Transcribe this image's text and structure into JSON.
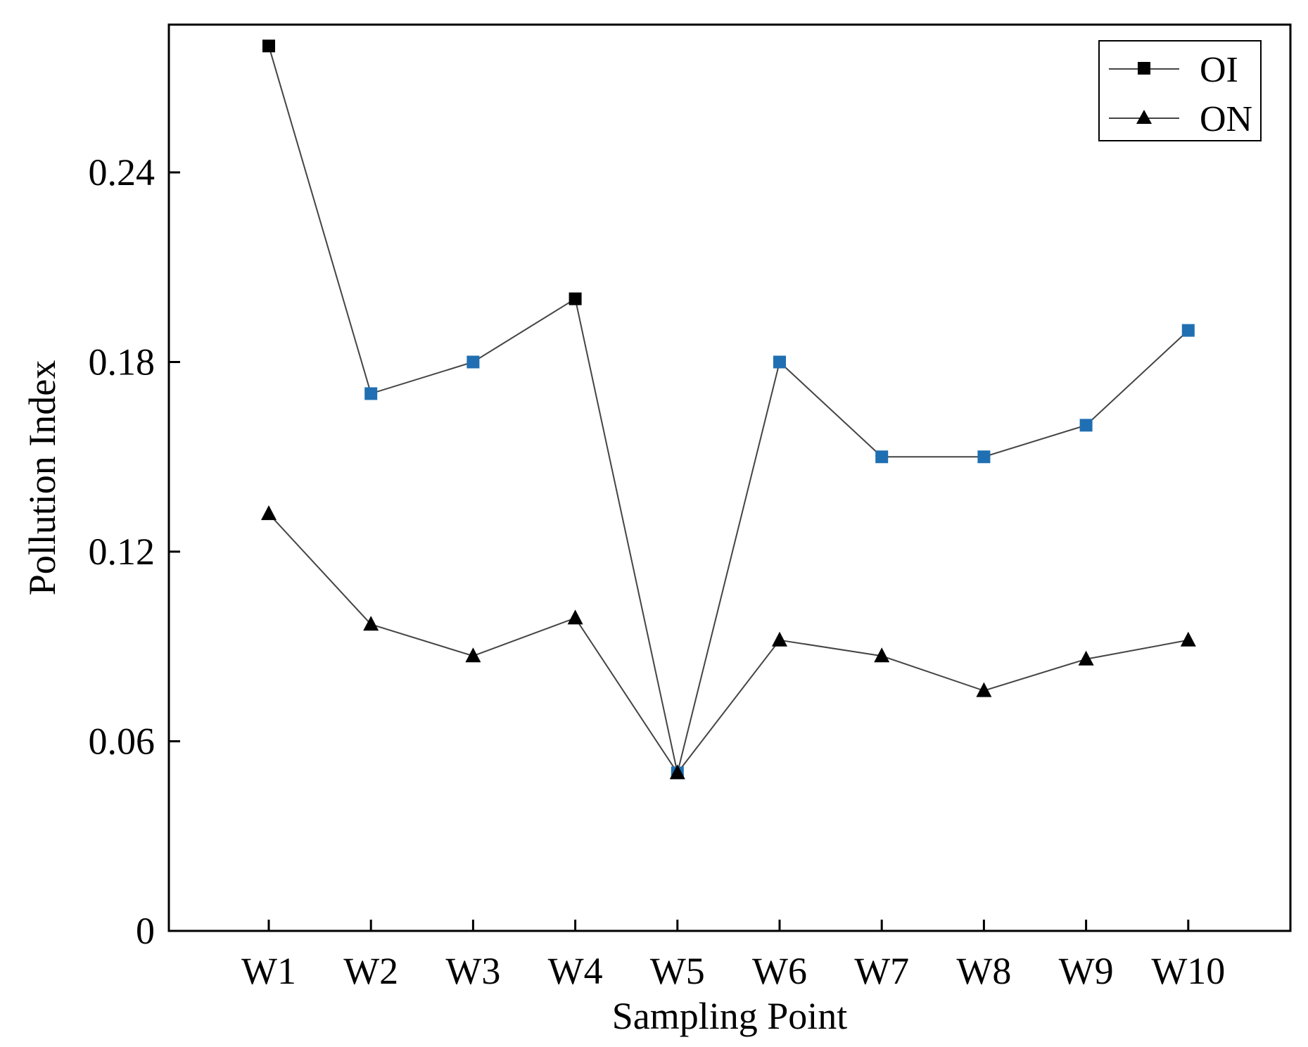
{
  "chart_data": {
    "type": "line",
    "title": "",
    "xlabel": "Sampling Point",
    "ylabel": "Pollution Index",
    "categories": [
      "W1",
      "W2",
      "W3",
      "W4",
      "W5",
      "W6",
      "W7",
      "W8",
      "W9",
      "W10"
    ],
    "ylim": [
      0,
      0.28
    ],
    "yticks": [
      0,
      0.06,
      0.12,
      0.18,
      0.24
    ],
    "ytick_labels": [
      "0",
      "0.06",
      "0.12",
      "0.18",
      "0.24"
    ],
    "grid": false,
    "legend_position": "top-right",
    "series": [
      {
        "name": "OI",
        "marker": "square",
        "values": [
          0.28,
          0.17,
          0.18,
          0.2,
          0.05,
          0.18,
          0.15,
          0.15,
          0.16,
          0.19
        ],
        "marker_colors": [
          "#000000",
          "#1f6fb2",
          "#1f6fb2",
          "#000000",
          "#1f6fb2",
          "#1f6fb2",
          "#1f6fb2",
          "#1f6fb2",
          "#1f6fb2",
          "#1f6fb2"
        ]
      },
      {
        "name": "ON",
        "marker": "triangle",
        "values": [
          0.132,
          0.097,
          0.087,
          0.099,
          0.05,
          0.092,
          0.087,
          0.076,
          0.086,
          0.092
        ],
        "marker_colors": [
          "#000000",
          "#000000",
          "#000000",
          "#000000",
          "#000000",
          "#000000",
          "#000000",
          "#000000",
          "#000000",
          "#000000"
        ]
      }
    ],
    "colors": {
      "line": "#444444",
      "axis": "#000000",
      "blue_marker": "#1f6fb2"
    }
  }
}
